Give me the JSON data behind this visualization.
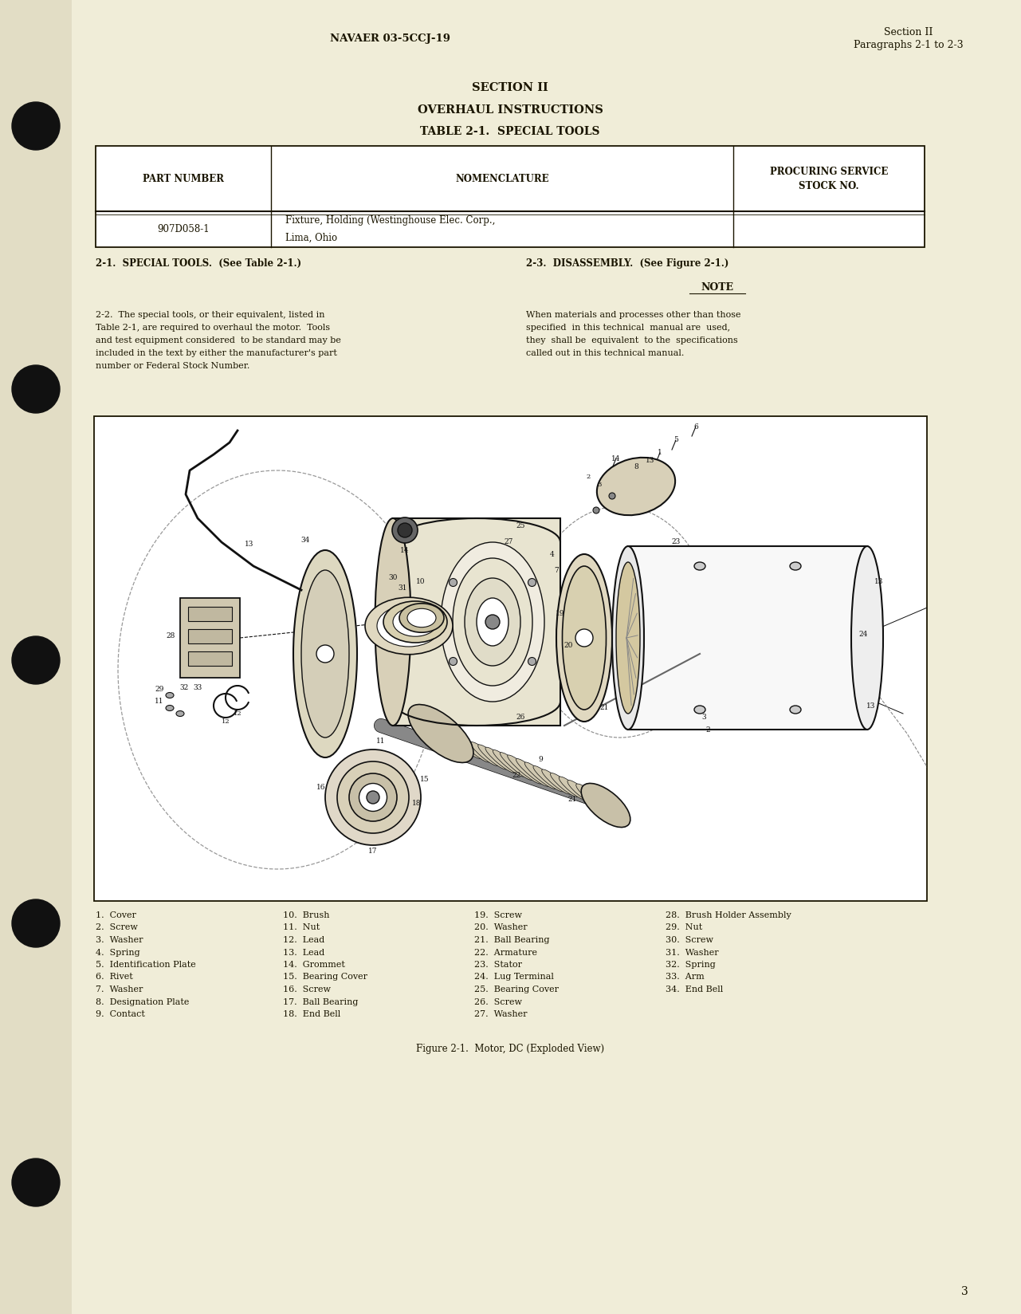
{
  "bg_color": "#f0edd8",
  "text_color": "#1a1500",
  "header_left": "NAVAER 03-5CCJ-19",
  "header_right_line1": "Section II",
  "header_right_line2": "Paragraphs 2-1 to 2-3",
  "title1": "SECTION II",
  "title2": "OVERHAUL INSTRUCTIONS",
  "title3": "TABLE 2-1.  SPECIAL TOOLS",
  "table_row_col1": "907D058-1",
  "table_row_col2_line1": "Fixture, Holding (Westinghouse Elec. Corp.,",
  "table_row_col2_line2": "Lima, Ohio",
  "para_left_heading": "2-1.  SPECIAL TOOLS.  (See Table 2-1.)",
  "para_right_heading": "2-3.  DISASSEMBLY.  (See Figure 2-1.)",
  "note_heading": "NOTE",
  "para_left_lines": [
    "2-2.  The special tools, or their equivalent, listed in",
    "Table 2-1, are required to overhaul the motor.  Tools",
    "and test equipment considered  to be standard may be",
    "included in the text by either the manufacturer's part",
    "number or Federal Stock Number."
  ],
  "para_right_lines": [
    "When materials and processes other than those",
    "specified  in this technical  manual are  used,",
    "they  shall be  equivalent  to the  specifications",
    "called out in this technical manual."
  ],
  "figure_caption": "Figure 2-1.  Motor, DC (Exploded View)",
  "page_number": "3",
  "legend_items": [
    [
      "1.  Cover",
      "10.  Brush",
      "19.  Screw",
      "28.  Brush Holder Assembly"
    ],
    [
      "2.  Screw",
      "11.  Nut",
      "20.  Washer",
      "29.  Nut"
    ],
    [
      "3.  Washer",
      "12.  Lead",
      "21.  Ball Bearing",
      "30.  Screw"
    ],
    [
      "4.  Spring",
      "13.  Lead",
      "22.  Armature",
      "31.  Washer"
    ],
    [
      "5.  Identification Plate",
      "14.  Grommet",
      "23.  Stator",
      "32.  Spring"
    ],
    [
      "6.  Rivet",
      "15.  Bearing Cover",
      "24.  Lug Terminal",
      "33.  Arm"
    ],
    [
      "7.  Washer",
      "16.  Screw",
      "25.  Bearing Cover",
      "34.  End Bell"
    ],
    [
      "8.  Designation Plate",
      "17.  Ball Bearing",
      "26.  Screw",
      ""
    ],
    [
      "9.  Contact",
      "18.  End Bell",
      "27.  Washer",
      ""
    ]
  ]
}
